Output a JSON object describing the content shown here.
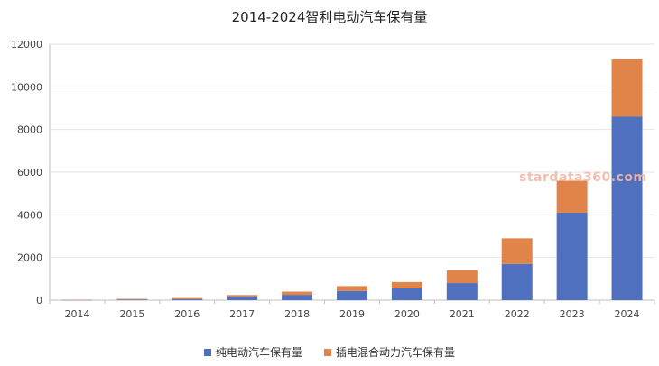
{
  "chart_data": {
    "type": "bar",
    "stacked": true,
    "title": "2014-2024智利电动汽车保有量",
    "xlabel": "",
    "ylabel": "",
    "categories": [
      "2014",
      "2015",
      "2016",
      "2017",
      "2018",
      "2019",
      "2020",
      "2021",
      "2022",
      "2023",
      "2024"
    ],
    "yticks": [
      "0",
      "2000",
      "4000",
      "6000",
      "8000",
      "10000",
      "12000"
    ],
    "ylim": [
      0,
      12000
    ],
    "grid": true,
    "legend_position": "bottom",
    "series": [
      {
        "name": "纯电动汽车保有量",
        "color": "#4f6fbf",
        "values": [
          10,
          25,
          45,
          160,
          250,
          430,
          550,
          800,
          1700,
          4100,
          8600
        ]
      },
      {
        "name": "插电混合动力汽车保有量",
        "color": "#e0844a",
        "values": [
          10,
          35,
          55,
          80,
          150,
          230,
          300,
          600,
          1200,
          1500,
          2700
        ]
      }
    ]
  },
  "watermark": "stardata360.com"
}
